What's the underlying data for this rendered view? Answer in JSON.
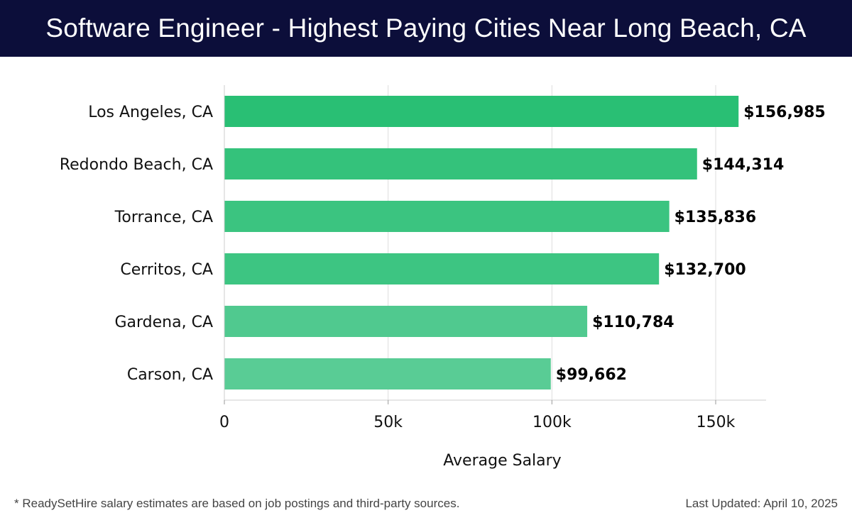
{
  "header": {
    "title": "Software Engineer - Highest Paying Cities Near Long Beach, CA"
  },
  "footer": {
    "note": "* ReadySetHire salary estimates are based on job postings and third-party sources.",
    "updated": "Last Updated: April 10, 2025"
  },
  "colors": {
    "header_bg": "#0c0e3a",
    "bar_dark": "#29bf74",
    "bar_light": "#59cc95",
    "grid": "#dddddd"
  },
  "chart_data": {
    "type": "bar",
    "orientation": "horizontal",
    "title": "Software Engineer - Highest Paying Cities Near Long Beach, CA",
    "xlabel": "Average Salary",
    "ylabel": "",
    "categories": [
      "Los Angeles, CA",
      "Redondo Beach, CA",
      "Torrance, CA",
      "Cerritos, CA",
      "Gardena, CA",
      "Carson, CA"
    ],
    "values": [
      156985,
      144314,
      135836,
      132700,
      110784,
      99662
    ],
    "value_labels": [
      "$156,985",
      "$144,314",
      "$135,836",
      "$132,700",
      "$110,784",
      "$99,662"
    ],
    "xlim": [
      0,
      165000
    ],
    "xticks": [
      0,
      50000,
      100000,
      150000
    ],
    "xtick_labels": [
      "0",
      "50k",
      "100k",
      "150k"
    ],
    "grid": true
  }
}
